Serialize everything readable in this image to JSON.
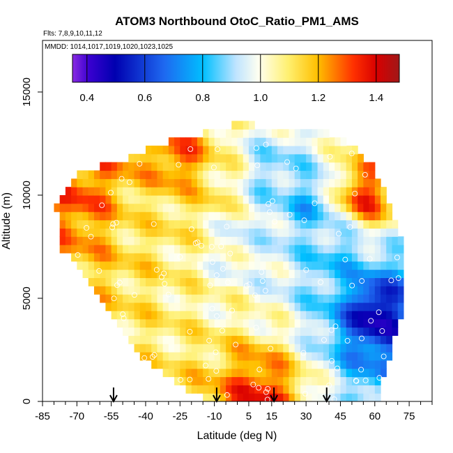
{
  "chart_data": {
    "type": "heatmap",
    "title": "ATOM3 Northbound OtoC_Ratio_PM1_AMS",
    "subtitle_flights": "Flts: 7,8,9,10,11,12",
    "subtitle_dates": "MMDD: 1014,1017,1019,1020,1023,1025",
    "xlabel": "Latitude (deg N)",
    "ylabel": "Altitude (m)",
    "xlim": [
      -85,
      85
    ],
    "ylim": [
      0,
      17500
    ],
    "x_ticks": [
      -85,
      -70,
      -55,
      -40,
      -25,
      -10,
      5,
      15,
      30,
      45,
      60,
      75
    ],
    "y_ticks": [
      0,
      5000,
      10000,
      15000
    ],
    "colorbar": {
      "min": 0.35,
      "max": 1.48,
      "ticks": [
        0.4,
        0.6,
        0.8,
        1.0,
        1.2,
        1.4
      ],
      "tick_labels": [
        "0.4",
        "0.6",
        "0.8",
        "1.0",
        "1.2",
        "1.4"
      ]
    },
    "profile_markers_lat": [
      -54,
      -9,
      16,
      39
    ],
    "grid_sample_values": [
      {
        "lat": -70,
        "alt": 10000,
        "value": 1.3
      },
      {
        "lat": -60,
        "alt": 11500,
        "value": 1.25
      },
      {
        "lat": -40,
        "alt": 9000,
        "value": 1.1
      },
      {
        "lat": -25,
        "alt": 11800,
        "value": 1.3
      },
      {
        "lat": -10,
        "alt": 10000,
        "value": 1.12
      },
      {
        "lat": 0,
        "alt": 8000,
        "value": 0.95
      },
      {
        "lat": 15,
        "alt": 11000,
        "value": 0.85
      },
      {
        "lat": 30,
        "alt": 9500,
        "value": 0.78
      },
      {
        "lat": 45,
        "alt": 7000,
        "value": 0.8
      },
      {
        "lat": 60,
        "alt": 4300,
        "value": 0.45
      },
      {
        "lat": 55,
        "alt": 10000,
        "value": 1.35
      },
      {
        "lat": 10,
        "alt": 300,
        "value": 1.35
      }
    ]
  }
}
